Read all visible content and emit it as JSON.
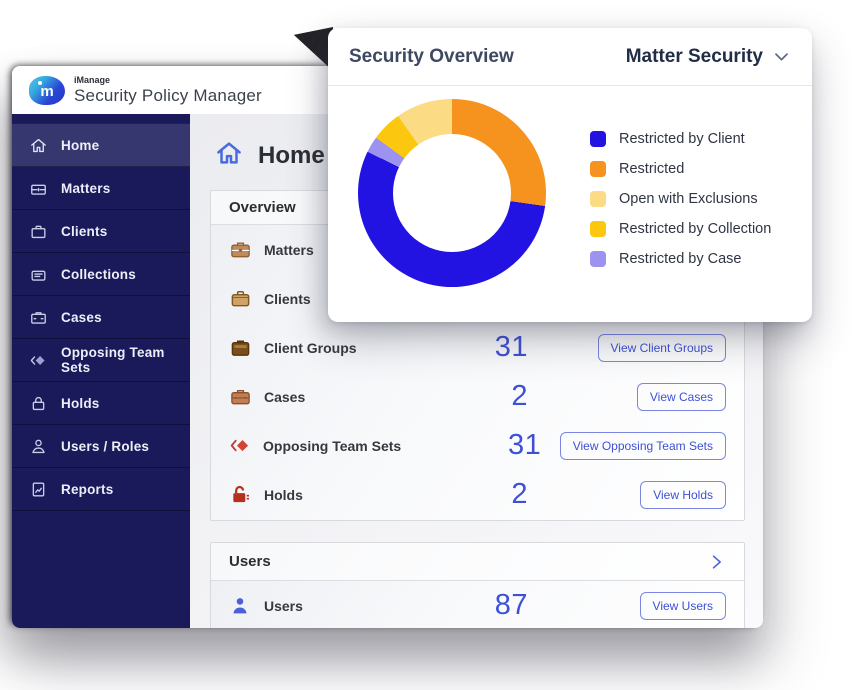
{
  "app": {
    "brand_small": "iManage",
    "brand_title": "Security Policy Manager"
  },
  "sidebar": {
    "items": [
      {
        "label": "Home",
        "icon": "home",
        "active": true
      },
      {
        "label": "Matters",
        "icon": "matters",
        "active": false
      },
      {
        "label": "Clients",
        "icon": "clients",
        "active": false
      },
      {
        "label": "Collections",
        "icon": "collections",
        "active": false
      },
      {
        "label": "Cases",
        "icon": "cases",
        "active": false
      },
      {
        "label": "Opposing Team Sets",
        "icon": "opposing",
        "active": false
      },
      {
        "label": "Holds",
        "icon": "holds",
        "active": false
      },
      {
        "label": "Users / Roles",
        "icon": "users",
        "active": false
      },
      {
        "label": "Reports",
        "icon": "reports",
        "active": false
      }
    ]
  },
  "page": {
    "title": "Home"
  },
  "overview_card": {
    "title": "Overview",
    "rows": [
      {
        "label": "Matters",
        "icon": "matters",
        "value": "",
        "button": ""
      },
      {
        "label": "Clients",
        "icon": "clients",
        "value": "",
        "button": ""
      },
      {
        "label": "Client Groups",
        "icon": "clientgroups",
        "value": "31",
        "button": "View Client Groups"
      },
      {
        "label": "Cases",
        "icon": "cases",
        "value": "2",
        "button": "View Cases"
      },
      {
        "label": "Opposing Team Sets",
        "icon": "opposing",
        "value": "31",
        "button": "View Opposing Team Sets"
      },
      {
        "label": "Holds",
        "icon": "holds",
        "value": "2",
        "button": "View Holds"
      }
    ]
  },
  "users_card": {
    "title": "Users",
    "rows": [
      {
        "label": "Users",
        "icon": "userblue",
        "value": "87",
        "button": "View Users"
      }
    ]
  },
  "security_card": {
    "title": "Security Overview",
    "selector": "Matter Security"
  },
  "chart_data": {
    "type": "donut",
    "title": "Security Overview",
    "filter_selected": "Matter Security",
    "hole_ratio": 0.63,
    "segments_clockwise_from_top": [
      {
        "label": "Restricted",
        "color": "#F6921E",
        "start_deg": 0,
        "end_deg": 98,
        "percent": 27.2
      },
      {
        "label": "Restricted by Client",
        "color": "#2313E2",
        "start_deg": 98,
        "end_deg": 296,
        "percent": 55.0
      },
      {
        "label": "Restricted by Case",
        "color": "#9C92F0",
        "start_deg": 296,
        "end_deg": 306,
        "percent": 2.8
      },
      {
        "label": "Restricted by Collection",
        "color": "#FBC70F",
        "start_deg": 306,
        "end_deg": 325,
        "percent": 5.3
      },
      {
        "label": "Open with Exclusions",
        "color": "#FBDC85",
        "start_deg": 325,
        "end_deg": 360,
        "percent": 9.7
      }
    ],
    "legend": [
      {
        "label": "Restricted by Client",
        "color": "#2313E2"
      },
      {
        "label": "Restricted",
        "color": "#F6921E"
      },
      {
        "label": "Open with Exclusions",
        "color": "#FBDC85"
      },
      {
        "label": "Restricted by Collection",
        "color": "#FBC70F"
      },
      {
        "label": "Restricted by Case",
        "color": "#9C92F0"
      }
    ],
    "legend_position": "right"
  },
  "colors": {
    "sidebar_bg": "#1a1a5a",
    "sidebar_active": "#37376f",
    "accent_blue": "#3d50d6",
    "number_blue": "#3d50d6"
  }
}
